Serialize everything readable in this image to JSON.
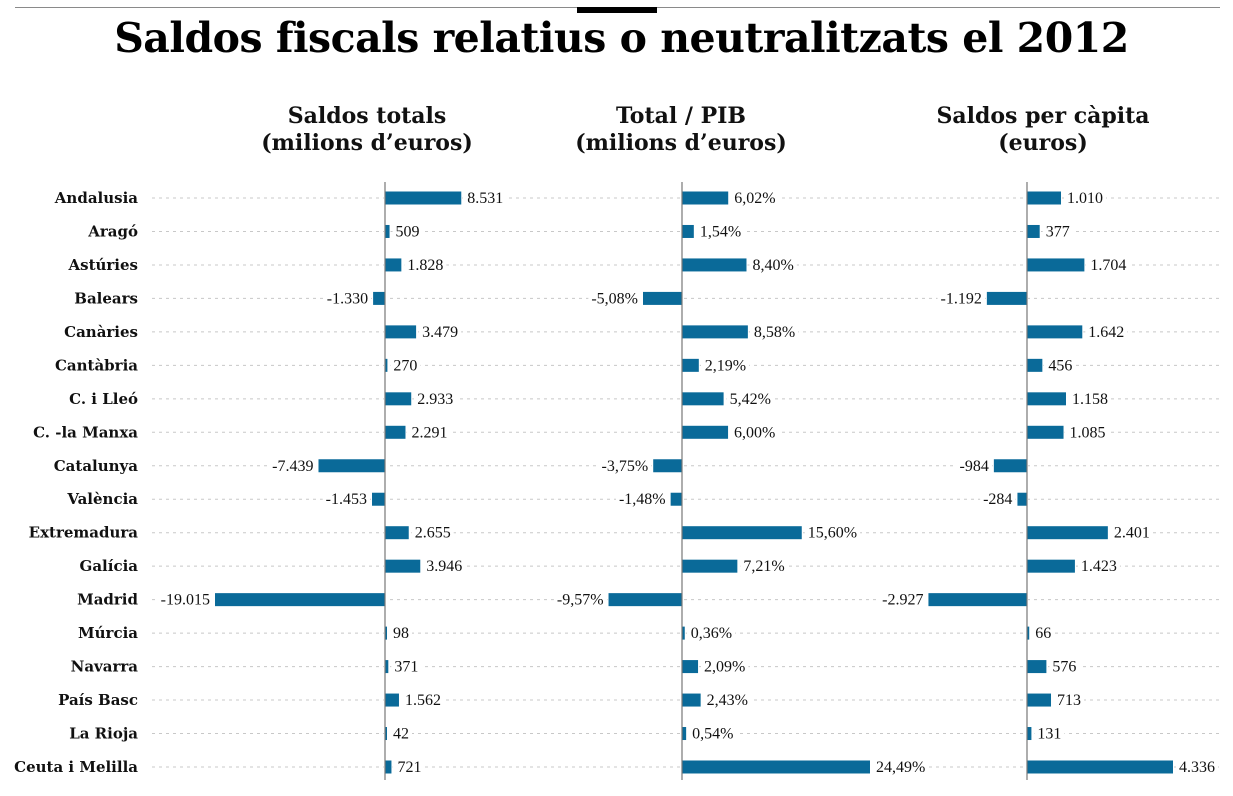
{
  "title": "Saldos fiscals relatius o neutralitzats el 2012",
  "panels": [
    {
      "line1": "Saldos totals",
      "line2": "(milions d’euros)"
    },
    {
      "line1": "Total / PIB",
      "line2": "(milions d’euros)"
    },
    {
      "line1": "Saldos per càpita",
      "line2": "(euros)"
    }
  ],
  "colors": {
    "bar": "#0a6a99",
    "axis": "#777777",
    "gridline": "#c8c8c8"
  },
  "chart_data": {
    "type": "bar",
    "orientation": "horizontal",
    "title": "Saldos fiscals relatius o neutralitzats el 2012",
    "categories": [
      "Andalusia",
      "Aragó",
      "Astúries",
      "Balears",
      "Canàries",
      "Cantàbria",
      "C. i Lleó",
      "C. -la Manxa",
      "Catalunya",
      "València",
      "Extremadura",
      "Galícia",
      "Madrid",
      "Múrcia",
      "Navarra",
      "País Basc",
      "La Rioja",
      "Ceuta i Melilla"
    ],
    "grid": "dotted horizontal row guides",
    "legend": "none",
    "series": [
      {
        "name": "Saldos totals (milions d’euros)",
        "values": [
          8531,
          509,
          1828,
          -1330,
          3479,
          270,
          2933,
          2291,
          -7439,
          -1453,
          2655,
          3946,
          -19015,
          98,
          371,
          1562,
          42,
          721
        ],
        "labels": [
          "8.531",
          "509",
          "1.828",
          "-1.330",
          "3.479",
          "270",
          "2.933",
          "2.291",
          "-7.439",
          "-1.453",
          "2.655",
          "3.946",
          "-19.015",
          "98",
          "371",
          "1.562",
          "42",
          "721"
        ],
        "xlim": [
          -19015,
          10000
        ]
      },
      {
        "name": "Total / PIB (milions d’euros)",
        "values": [
          6.02,
          1.54,
          8.4,
          -5.08,
          8.58,
          2.19,
          5.42,
          6.0,
          -3.75,
          -1.48,
          15.6,
          7.21,
          -9.57,
          0.36,
          2.09,
          2.43,
          0.54,
          24.49
        ],
        "labels": [
          "6,02%",
          "1,54%",
          "8,40%",
          "-5,08%",
          "8,58%",
          "2,19%",
          "5,42%",
          "6,00%",
          "-3,75%",
          "-1,48%",
          "15,60%",
          "7,21%",
          "-9,57%",
          "0,36%",
          "2,09%",
          "2,43%",
          "0,54%",
          "24,49%"
        ],
        "xlim": [
          -9.57,
          24.49
        ]
      },
      {
        "name": "Saldos per càpita (euros)",
        "values": [
          1010,
          377,
          1704,
          -1192,
          1642,
          456,
          1158,
          1085,
          -984,
          -284,
          2401,
          1423,
          -2927,
          66,
          576,
          713,
          131,
          4336
        ],
        "labels": [
          "1.010",
          "377",
          "1.704",
          "-1.192",
          "1.642",
          "456",
          "1.158",
          "1.085",
          "-984",
          "-284",
          "2.401",
          "1.423",
          "-2.927",
          "66",
          "576",
          "713",
          "131",
          "4.336"
        ],
        "xlim": [
          -2927,
          4336
        ]
      }
    ]
  }
}
